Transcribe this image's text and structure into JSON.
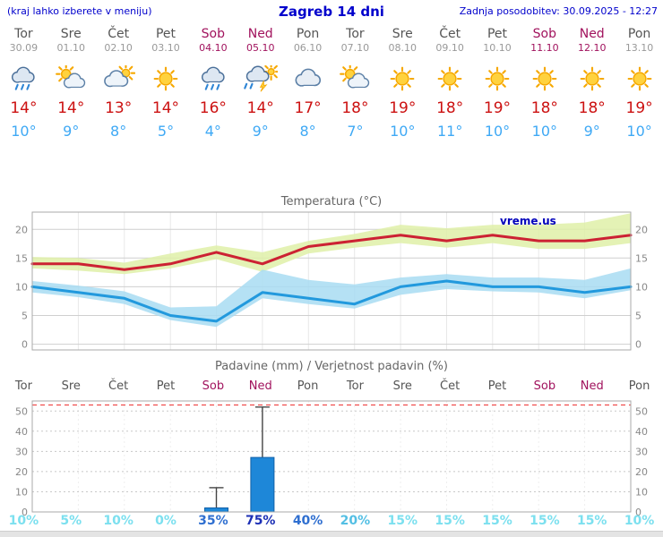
{
  "header": {
    "left_note": "(kraj lahko izberete v meniju)",
    "title": "Zagreb 14 dni",
    "updated": "Zadnja posodobitev: 30.09.2025 - 12:27"
  },
  "colors": {
    "header_blue": "#0000cc",
    "weekday_text": "#555555",
    "weekend_text": "#a1125d",
    "temp_high": "#cc1111",
    "temp_low": "#3fa9f5",
    "max_line": "#cc2233",
    "max_band": "#dff0a8",
    "min_line": "#2299dd",
    "min_band": "#a8dcf2",
    "bar_fill": "#1e87d8",
    "limit_line": "#ee3333"
  },
  "days": [
    {
      "name": "Tor",
      "date": "30.09",
      "weekend": false,
      "icon": "rain",
      "tmax": "14°",
      "tmin": "10°"
    },
    {
      "name": "Sre",
      "date": "01.10",
      "weekend": false,
      "icon": "partly-cloudy",
      "tmax": "14°",
      "tmin": "9°"
    },
    {
      "name": "Čet",
      "date": "02.10",
      "weekend": false,
      "icon": "mostly-cloudy",
      "tmax": "13°",
      "tmin": "8°"
    },
    {
      "name": "Pet",
      "date": "03.10",
      "weekend": false,
      "icon": "sunny",
      "tmax": "14°",
      "tmin": "5°"
    },
    {
      "name": "Sob",
      "date": "04.10",
      "weekend": true,
      "icon": "rain",
      "tmax": "16°",
      "tmin": "4°"
    },
    {
      "name": "Ned",
      "date": "05.10",
      "weekend": true,
      "icon": "storm",
      "tmax": "14°",
      "tmin": "9°"
    },
    {
      "name": "Pon",
      "date": "06.10",
      "weekend": false,
      "icon": "cloudy",
      "tmax": "17°",
      "tmin": "8°"
    },
    {
      "name": "Tor",
      "date": "07.10",
      "weekend": false,
      "icon": "partly-cloudy",
      "tmax": "18°",
      "tmin": "7°"
    },
    {
      "name": "Sre",
      "date": "08.10",
      "weekend": false,
      "icon": "sunny",
      "tmax": "19°",
      "tmin": "10°"
    },
    {
      "name": "Čet",
      "date": "09.10",
      "weekend": false,
      "icon": "sunny",
      "tmax": "18°",
      "tmin": "11°"
    },
    {
      "name": "Pet",
      "date": "10.10",
      "weekend": false,
      "icon": "sunny",
      "tmax": "19°",
      "tmin": "10°"
    },
    {
      "name": "Sob",
      "date": "11.10",
      "weekend": true,
      "icon": "sunny",
      "tmax": "18°",
      "tmin": "10°"
    },
    {
      "name": "Ned",
      "date": "12.10",
      "weekend": true,
      "icon": "sunny",
      "tmax": "18°",
      "tmin": "9°"
    },
    {
      "name": "Pon",
      "date": "13.10",
      "weekend": false,
      "icon": "sunny",
      "tmax": "19°",
      "tmin": "10°"
    }
  ],
  "chart_data": [
    {
      "type": "line",
      "title": "Temperatura (°C)",
      "watermark": "vreme.us",
      "x_labels": [
        "Tor 30.09",
        "Sre 01.10",
        "Čet 02.10",
        "Pet 03.10",
        "Sob 04.10",
        "Ned 05.10",
        "Pon 06.10",
        "Tor 07.10",
        "Sre 08.10",
        "Čet 09.10",
        "Pet 10.10",
        "Sob 11.10",
        "Ned 12.10",
        "Pon 13.10"
      ],
      "yticks": [
        0,
        5,
        10,
        15,
        20
      ],
      "ylim": [
        -1,
        23
      ],
      "grid": true,
      "series": [
        {
          "name": "max temperatura",
          "color": "#cc2233",
          "values": [
            14,
            14,
            13,
            14,
            16,
            14,
            17,
            18,
            19,
            18,
            19,
            18,
            18,
            19
          ]
        },
        {
          "name": "min temperatura",
          "color": "#2299dd",
          "values": [
            10,
            9,
            8,
            5,
            4,
            9,
            8,
            7,
            10,
            11,
            10,
            10,
            9,
            10
          ]
        }
      ],
      "bands": [
        {
          "name": "max razpon",
          "color": "#dff0a8",
          "upper": [
            15.2,
            15,
            14.2,
            15.8,
            17.2,
            16,
            18,
            19.2,
            20.8,
            20.2,
            20.8,
            20.8,
            21.2,
            22.8
          ],
          "lower": [
            13.2,
            12.8,
            12.2,
            13.2,
            14.8,
            12.6,
            15.8,
            16.8,
            17.6,
            16.8,
            17.6,
            16.6,
            16.6,
            17.6
          ]
        },
        {
          "name": "min razpon",
          "color": "#a8dcf2",
          "upper": [
            11,
            10.2,
            9.2,
            6.4,
            6.6,
            13,
            11.2,
            10.4,
            11.6,
            12.2,
            11.6,
            11.6,
            11.2,
            13.2
          ],
          "lower": [
            9,
            8.2,
            7,
            4.2,
            3,
            8,
            7,
            6.2,
            8.6,
            9.6,
            9.2,
            9,
            8,
            9.4
          ]
        }
      ]
    },
    {
      "type": "bar",
      "title": "Padavine (mm) / Verjetnost padavin (%)",
      "x_labels": [
        "Tor",
        "Sre",
        "Čet",
        "Pet",
        "Sob",
        "Ned",
        "Pon",
        "Tor",
        "Sre",
        "Čet",
        "Pet",
        "Sob",
        "Ned",
        "Pon"
      ],
      "yticks": [
        0,
        10,
        20,
        30,
        40,
        50
      ],
      "ylim": [
        0,
        55
      ],
      "limit_value": 53,
      "bars_mm": [
        0,
        0,
        0,
        0,
        2,
        27,
        0,
        0,
        0,
        0,
        0,
        0,
        0,
        0
      ],
      "whisker_max": [
        null,
        null,
        null,
        null,
        12,
        52,
        null,
        null,
        null,
        null,
        null,
        null,
        null,
        null
      ],
      "probability_pct": [
        10,
        5,
        10,
        0,
        35,
        75,
        40,
        20,
        15,
        15,
        15,
        15,
        15,
        10
      ],
      "probability_labels": [
        "10%",
        "5%",
        "10%",
        "0%",
        "35%",
        "75%",
        "40%",
        "20%",
        "15%",
        "15%",
        "15%",
        "15%",
        "15%",
        "10%"
      ]
    }
  ]
}
